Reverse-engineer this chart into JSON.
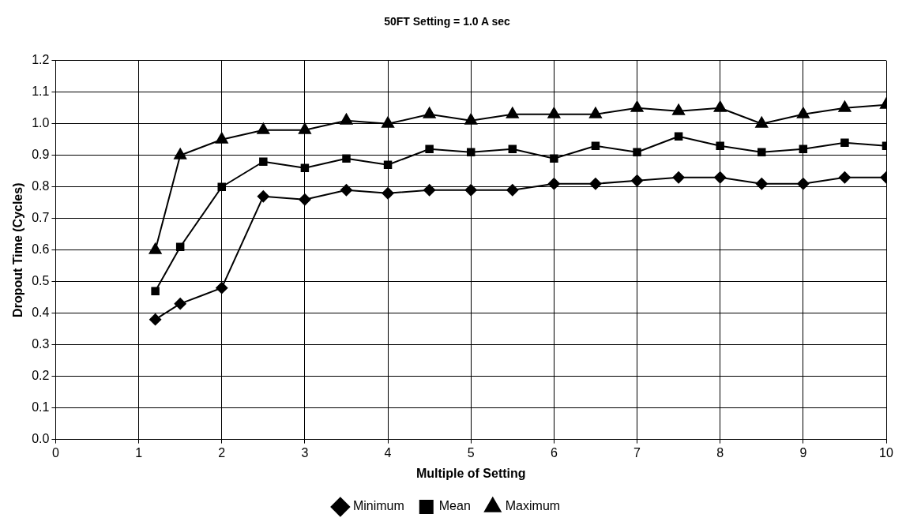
{
  "chart_data": {
    "type": "line",
    "title": "50FT Setting = 1.0 A sec",
    "xlabel": "Multiple of Setting",
    "ylabel": "Dropout Time (Cycles)",
    "x": [
      1.2,
      1.5,
      2,
      2.5,
      3,
      3.5,
      4,
      4.5,
      5,
      5.5,
      6,
      6.5,
      7,
      7.5,
      8,
      8.5,
      9,
      9.5,
      10
    ],
    "series": [
      {
        "name": "Minimum",
        "color": "#000000",
        "marker": "diamond",
        "values": [
          0.38,
          0.43,
          0.48,
          0.77,
          0.76,
          0.79,
          0.78,
          0.79,
          0.79,
          0.79,
          0.81,
          0.81,
          0.82,
          0.83,
          0.83,
          0.81,
          0.81,
          0.83,
          0.83
        ]
      },
      {
        "name": "Mean",
        "color": "#000000",
        "marker": "square",
        "values": [
          0.47,
          0.61,
          0.8,
          0.88,
          0.86,
          0.89,
          0.87,
          0.92,
          0.91,
          0.92,
          0.89,
          0.93,
          0.91,
          0.96,
          0.93,
          0.91,
          0.92,
          0.94,
          0.93
        ]
      },
      {
        "name": "Maximum",
        "color": "#000000",
        "marker": "triangle",
        "values": [
          0.6,
          0.9,
          0.95,
          0.98,
          0.98,
          1.01,
          1.0,
          1.03,
          1.01,
          1.03,
          1.03,
          1.03,
          1.05,
          1.04,
          1.05,
          1.0,
          1.03,
          1.05,
          1.06
        ]
      }
    ],
    "xlim": [
      0,
      10
    ],
    "xticks": [
      0,
      1,
      2,
      3,
      4,
      5,
      6,
      7,
      8,
      9,
      10
    ],
    "ylim": [
      0,
      1.2
    ],
    "yticks": [
      {
        "value": 0,
        "label": "0.0"
      },
      {
        "value": 0.1,
        "label": "0.1"
      },
      {
        "value": 0.2,
        "label": "0.2"
      },
      {
        "value": 0.3,
        "label": "0.3"
      },
      {
        "value": 0.4,
        "label": "0.4"
      },
      {
        "value": 0.5,
        "label": "0.5"
      },
      {
        "value": 0.6,
        "label": "0.6"
      },
      {
        "value": 0.7,
        "label": "0.7"
      },
      {
        "value": 0.8,
        "label": "0.8"
      },
      {
        "value": 0.9,
        "label": "0.9"
      },
      {
        "value": 1,
        "label": "1.0"
      },
      {
        "value": 1.1,
        "label": "1.1"
      },
      {
        "value": 1.2,
        "label": "1.2"
      }
    ],
    "grid": true,
    "legend": "bottom",
    "line_style": "solid"
  }
}
